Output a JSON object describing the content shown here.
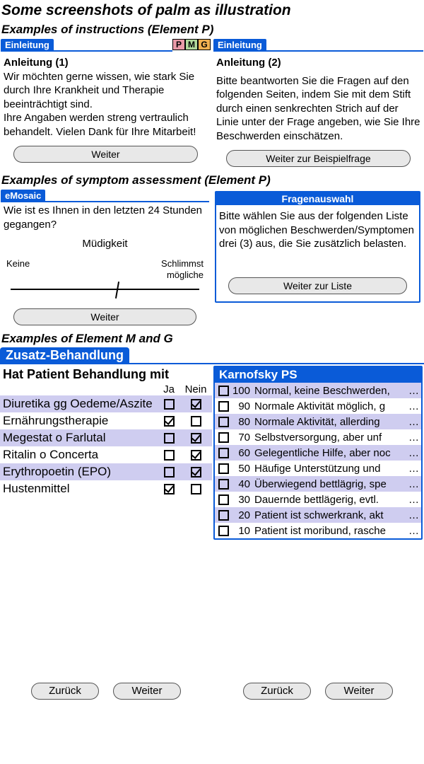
{
  "titles": {
    "main": "Some screenshots of palm as illustration",
    "sec1": "Examples of instructions (Element P)",
    "sec2": "Examples of symptom assessment (Element P)",
    "sec3": "Examples of Element M and G"
  },
  "colors": {
    "tab_blue": "#0a5bd8",
    "alt_row": "#cfcdf0",
    "btn_bg": "#e8e8e8"
  },
  "pmg": {
    "p": "P",
    "m": "M",
    "g": "G"
  },
  "instr1": {
    "tab": "Einleitung",
    "heading": "Anleitung (1)",
    "body": "Wir möchten gerne wissen, wie stark Sie durch Ihre Krankheit und Therapie beeinträchtigt sind.\nIhre Angaben werden streng vertraulich behandelt. Vielen Dank für Ihre Mitarbeit!",
    "button": "Weiter"
  },
  "instr2": {
    "tab": "Einleitung",
    "heading": "Anleitung (2)",
    "body": "Bitte beantworten Sie die Fragen auf den folgenden Seiten, indem Sie mit dem Stift durch einen senkrechten Strich auf der Linie unter der Frage angeben, wie Sie Ihre Beschwerden einschätzen.",
    "button": "Weiter zur Beispielfrage"
  },
  "vas": {
    "tab": "eMosaic",
    "question": "Wie ist es Ihnen in den letzten 24 Stunden gegangen?",
    "symptom": "Müdigkeit",
    "left": "Keine",
    "right": "Schlimmst\nmögliche",
    "mark_pct": 56,
    "button": "Weiter"
  },
  "qsel": {
    "title": "Fragenauswahl",
    "body": "Bitte wählen Sie aus der folgenden Liste von möglichen Beschwerden/Symptomen drei (3) aus, die Sie zusätzlich belasten.",
    "button": "Weiter zur Liste"
  },
  "treat": {
    "tab": "Zusatz-Behandlung",
    "heading": "Hat Patient Behandlung mit",
    "ja": "Ja",
    "nein": "Nein",
    "rows": [
      {
        "label": "Diuretika gg Oedeme/Aszite",
        "ja": false,
        "nein": true,
        "alt": true
      },
      {
        "label": "Ernährungstherapie",
        "ja": true,
        "nein": false,
        "alt": false
      },
      {
        "label": "Megestat o Farlutal",
        "ja": false,
        "nein": true,
        "alt": true
      },
      {
        "label": "Ritalin o Concerta",
        "ja": false,
        "nein": true,
        "alt": false
      },
      {
        "label": "Erythropoetin (EPO)",
        "ja": false,
        "nein": true,
        "alt": true
      },
      {
        "label": "Hustenmittel",
        "ja": true,
        "nein": false,
        "alt": false
      }
    ],
    "back": "Zurück",
    "next": "Weiter"
  },
  "kps": {
    "title": "Karnofsky PS",
    "rows": [
      {
        "score": 100,
        "text": "Normal, keine Beschwerden,",
        "alt": true
      },
      {
        "score": 90,
        "text": "Normale Aktivität möglich, g",
        "alt": false
      },
      {
        "score": 80,
        "text": "Normale Aktivität, allerding",
        "alt": true
      },
      {
        "score": 70,
        "text": "Selbstversorgung, aber unf",
        "alt": false
      },
      {
        "score": 60,
        "text": "Gelegentliche Hilfe, aber noc",
        "alt": true
      },
      {
        "score": 50,
        "text": "Häufige Unterstützung und",
        "alt": false
      },
      {
        "score": 40,
        "text": "Überwiegend bettlägrig, spe",
        "alt": true
      },
      {
        "score": 30,
        "text": "Dauernde bettlägerig, evtl.",
        "alt": false
      },
      {
        "score": 20,
        "text": "Patient ist schwerkrank, akt",
        "alt": true
      },
      {
        "score": 10,
        "text": "Patient ist moribund, rasche",
        "alt": false
      }
    ],
    "ellipsis": "…",
    "back": "Zurück",
    "next": "Weiter"
  }
}
